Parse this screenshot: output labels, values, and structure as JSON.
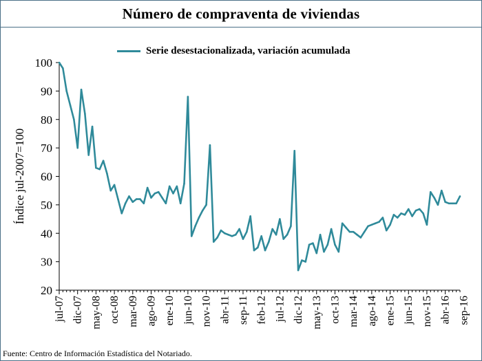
{
  "title": "Número de compraventa de viviendas",
  "source_note": "Fuente: Centro de Información Estadística del Notariado.",
  "chart_data": {
    "type": "line",
    "ylabel": "Índice jul-2007=100",
    "ylim": [
      20,
      100
    ],
    "yticks": [
      "20",
      "30",
      "40",
      "50",
      "60",
      "70",
      "80",
      "90",
      "100"
    ],
    "grid": false,
    "legend_position": "top-center",
    "colors": {
      "series": "#2f8a9a",
      "axis": "#000000",
      "frame": "#4a6e86"
    },
    "x_tick_labels": [
      "jul-07",
      "dic-07",
      "may-08",
      "oct-08",
      "mar-09",
      "ago-09",
      "ene-10",
      "jun-10",
      "nov-10",
      "abr-11",
      "sep-11",
      "feb-12",
      "jul-12",
      "dic-12",
      "may-13",
      "oct-13",
      "mar-14",
      "ago-14",
      "ene-15",
      "jun-15",
      "nov-15",
      "abr-16",
      "sep-16"
    ],
    "series": [
      {
        "name": "Serie desestacionalizada, variación acumulada",
        "values": [
          100,
          98,
          90,
          85,
          80,
          70,
          90.5,
          82,
          67.5,
          77.5,
          63,
          62.5,
          65.5,
          61,
          55,
          57,
          52,
          47,
          50.5,
          53,
          51,
          52,
          52,
          50.5,
          56,
          52.5,
          54,
          54.5,
          52.5,
          50.5,
          56.5,
          54,
          56.5,
          50.5,
          57.5,
          88,
          39,
          42.5,
          45.5,
          48,
          50,
          71,
          37,
          38.5,
          41,
          40,
          39.5,
          39,
          39.5,
          41.5,
          38,
          40.5,
          46,
          34,
          35,
          39,
          34,
          37,
          41.5,
          39.5,
          45,
          38,
          39.5,
          42.5,
          69,
          27,
          30.5,
          30,
          36,
          36.5,
          33,
          39.5,
          33.5,
          36,
          41.5,
          36,
          33.5,
          43.5,
          42,
          40.5,
          40.5,
          39.5,
          38.5,
          40.5,
          42.5,
          43,
          43.5,
          44,
          45.5,
          41,
          43,
          46.5,
          45.5,
          47,
          46.5,
          48.5,
          46,
          48,
          48.5,
          47,
          43,
          54.5,
          52.5,
          50,
          55,
          51,
          50.5,
          50.5,
          50.5,
          53
        ]
      }
    ]
  }
}
